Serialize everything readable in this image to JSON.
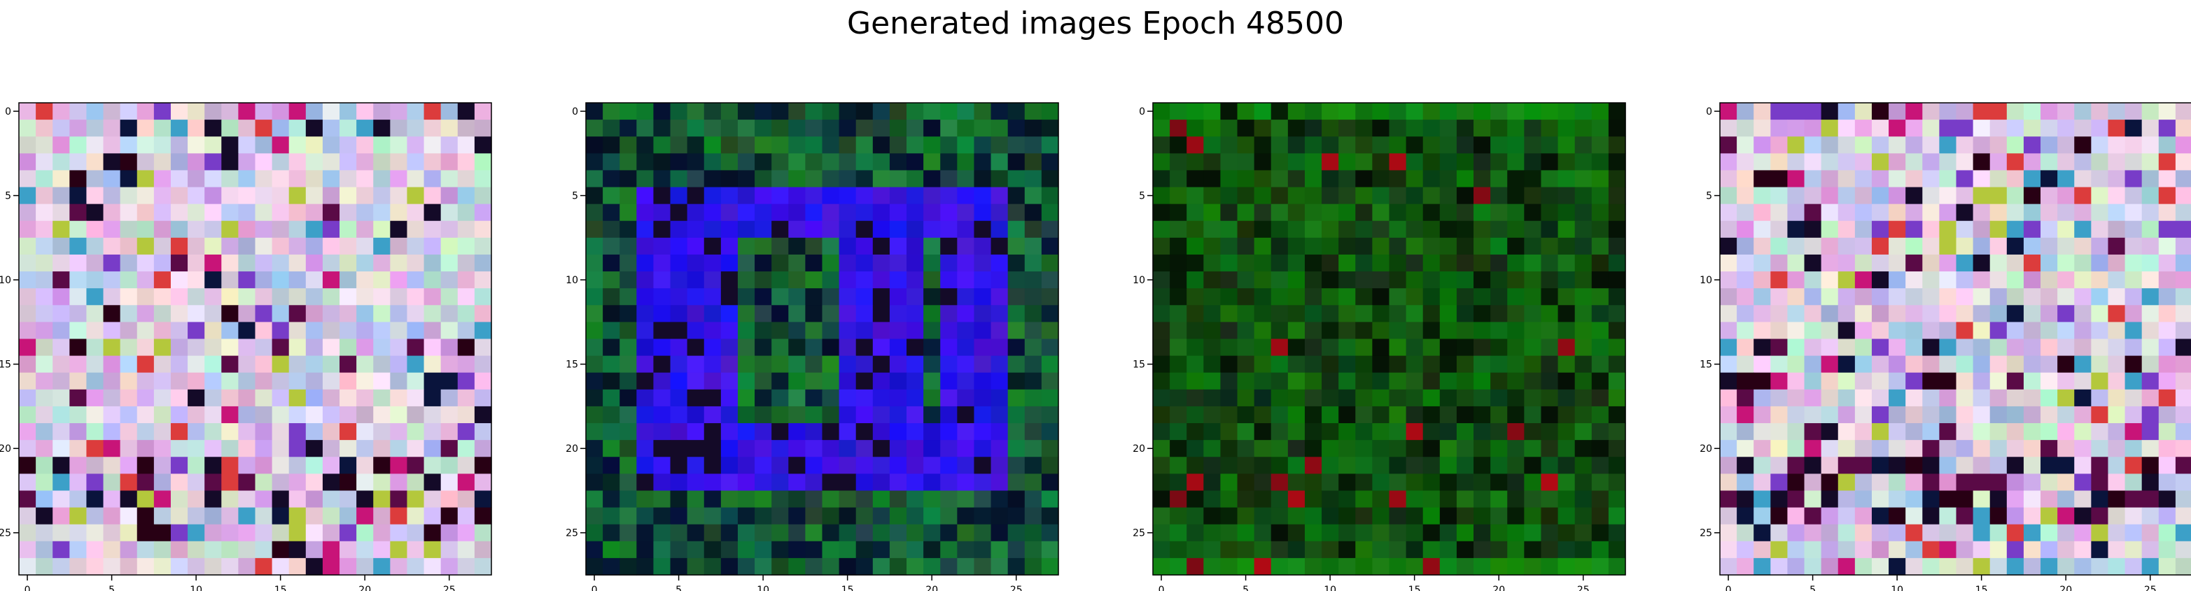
{
  "figure": {
    "title": "Generated images Epoch 48500"
  },
  "grid": {
    "rows": 28,
    "cols": 28
  },
  "axes": {
    "xticks": [
      "0",
      "5",
      "10",
      "15",
      "20",
      "25"
    ],
    "yticks": [
      "0",
      "5",
      "10",
      "15",
      "20",
      "25"
    ]
  },
  "panels": [
    {
      "style": "pastel",
      "seed": 11
    },
    {
      "style": "blue-square",
      "seed": 23
    },
    {
      "style": "green",
      "seed": 37
    },
    {
      "style": "pastel",
      "seed": 53
    }
  ],
  "colors": {
    "axis": "#000000",
    "background": "#ffffff"
  }
}
